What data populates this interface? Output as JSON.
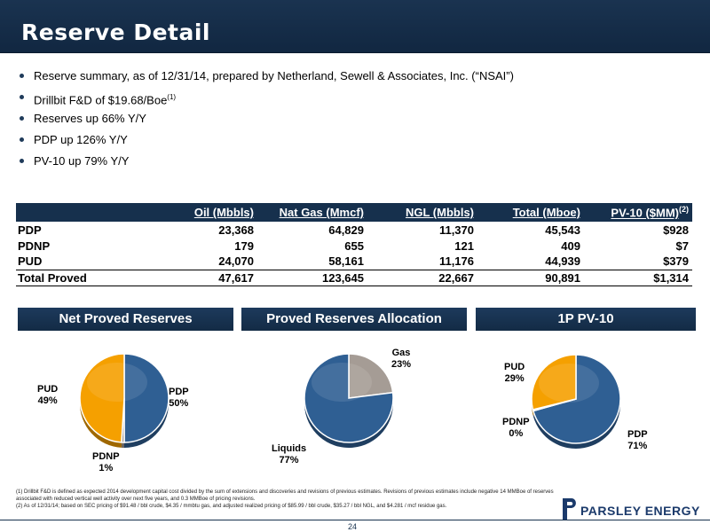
{
  "title": "Reserve Detail",
  "bullets": [
    {
      "text": "Reserve summary, as of 12/31/14, prepared by Netherland, Sewell & Associates, Inc. (“NSAI”)",
      "sup": ""
    },
    {
      "text": "Drillbit F&D of $19.68/Boe",
      "sup": "(1)"
    },
    {
      "text": "Reserves up 66% Y/Y",
      "sup": ""
    },
    {
      "text": "PDP up 126% Y/Y",
      "sup": ""
    },
    {
      "text": "PV-10 up 79% Y/Y",
      "sup": ""
    }
  ],
  "table": {
    "headers": [
      "Oil (Mbbls)",
      "Nat Gas (Mmcf)",
      "NGL (Mbbls)",
      "Total (Mboe)",
      "PV-10 ($MM)"
    ],
    "header_sup": "(2)",
    "rows": [
      {
        "label": "PDP",
        "values": [
          "23,368",
          "64,829",
          "11,370",
          "45,543",
          "$928"
        ]
      },
      {
        "label": "PDNP",
        "values": [
          "179",
          "655",
          "121",
          "409",
          "$7"
        ]
      },
      {
        "label": "PUD",
        "values": [
          "24,070",
          "58,161",
          "11,176",
          "44,939",
          "$379"
        ]
      },
      {
        "label": "Total Proved",
        "values": [
          "47,617",
          "123,645",
          "22,667",
          "90,891",
          "$1,314"
        ]
      }
    ]
  },
  "sections": [
    "Net Proved Reserves",
    "Proved Reserves Allocation",
    "1P PV-10"
  ],
  "colors": {
    "blue": "#2f5f93",
    "orange": "#f5a000",
    "gray": "#a59c95",
    "navy": "#16304d"
  },
  "chart_data": [
    {
      "type": "pie",
      "title": "Net Proved Reserves",
      "slices": [
        {
          "name": "PDP",
          "label": "PDP",
          "pct_label": "50%",
          "value": 50,
          "color": "#2f5f93"
        },
        {
          "name": "PDNP",
          "label": "PDNP",
          "pct_label": "1%",
          "value": 1,
          "color": "#a59c95"
        },
        {
          "name": "PUD",
          "label": "PUD",
          "pct_label": "49%",
          "value": 49,
          "color": "#f5a000"
        }
      ]
    },
    {
      "type": "pie",
      "title": "Proved Reserves Allocation",
      "slices": [
        {
          "name": "Gas",
          "label": "Gas",
          "pct_label": "23%",
          "value": 23,
          "color": "#a59c95"
        },
        {
          "name": "Liquids",
          "label": "Liquids",
          "pct_label": "77%",
          "value": 77,
          "color": "#2f5f93"
        }
      ]
    },
    {
      "type": "pie",
      "title": "1P PV-10",
      "slices": [
        {
          "name": "PDP",
          "label": "PDP",
          "pct_label": "71%",
          "value": 71,
          "color": "#2f5f93"
        },
        {
          "name": "PDNP",
          "label": "PDNP",
          "pct_label": "0%",
          "value": 0.5,
          "color": "#a59c95"
        },
        {
          "name": "PUD",
          "label": "PUD",
          "pct_label": "29%",
          "value": 29,
          "color": "#f5a000"
        }
      ]
    }
  ],
  "footnotes": [
    "(1) Drillbit F&D is defined as expected 2014 development capital cost divided by the sum of extensions and discoveries and revisions of previous estimates. Revisions of previous estimates include negative 14 MMBoe of reserves associated with reduced vertical well activity over next five years, and 0.3 MMBoe of pricing revisions.",
    "(2) As of 12/31/14; based on SEC pricing of $91.48 / bbl crude, $4.35 / mmbtu gas, and adjusted realized pricing of $85.99 / bbl crude, $35.27 / bbl NGL, and $4.281 / mcf residue gas."
  ],
  "page_number": "24",
  "logo_text": "PARSLEY ENERGY"
}
